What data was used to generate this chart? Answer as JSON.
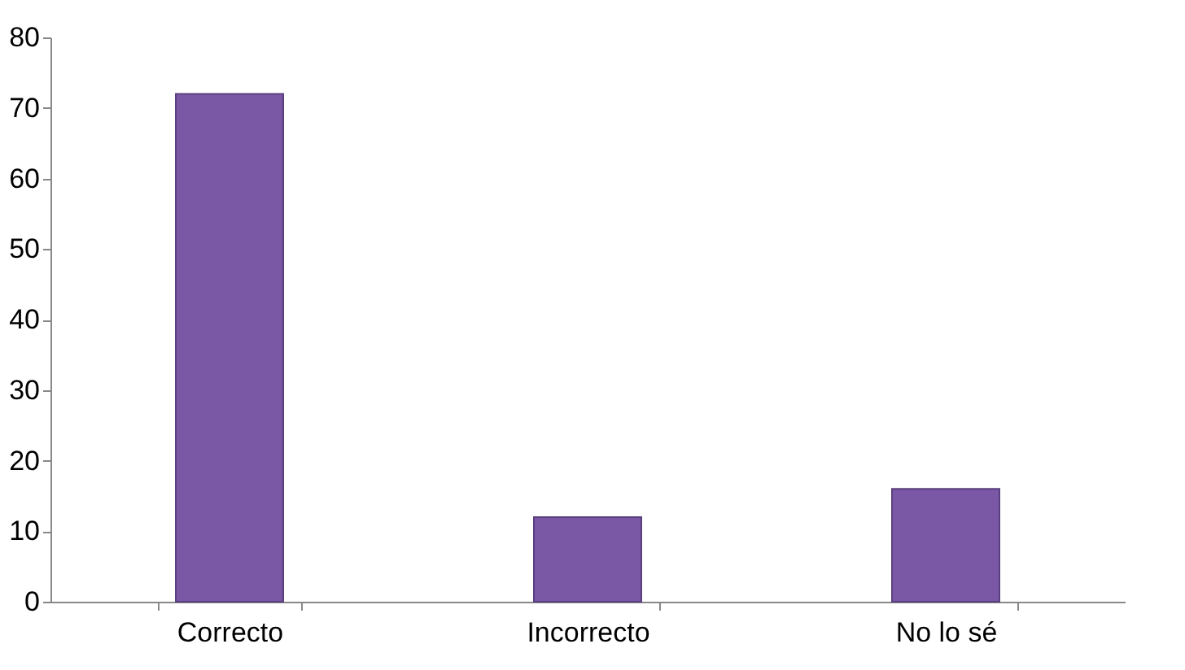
{
  "chart_data": {
    "type": "bar",
    "categories": [
      "Correcto",
      "Incorrecto",
      "No lo sé"
    ],
    "values": [
      72,
      12,
      16
    ],
    "color": "#7b58a6",
    "ylim": [
      0,
      80
    ],
    "yticks": [
      0,
      10,
      20,
      30,
      40,
      50,
      60,
      70,
      80
    ],
    "grid": false
  }
}
